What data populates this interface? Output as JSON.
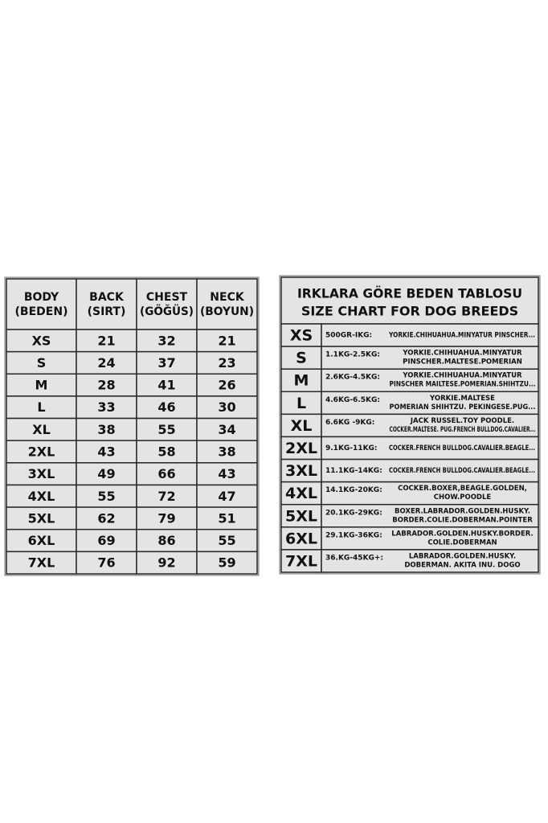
{
  "size_table": {
    "headers": [
      [
        "BODY",
        "(BEDEN)"
      ],
      [
        "BACK",
        "(SIRT)"
      ],
      [
        "CHEST",
        "(GÖĞÜS)"
      ],
      [
        "NECK",
        "(BOYUN)"
      ]
    ],
    "rows": [
      [
        "XS",
        21,
        32,
        21
      ],
      [
        "S",
        24,
        37,
        23
      ],
      [
        "M",
        28,
        41,
        26
      ],
      [
        "L",
        33,
        46,
        30
      ],
      [
        "XL",
        38,
        55,
        34
      ],
      [
        "2XL",
        43,
        58,
        38
      ],
      [
        "3XL",
        49,
        66,
        43
      ],
      [
        "4XL",
        55,
        72,
        47
      ],
      [
        "5XL",
        62,
        79,
        51
      ],
      [
        "6XL",
        69,
        86,
        55
      ],
      [
        "7XL",
        76,
        92,
        59
      ]
    ]
  },
  "breed_table": {
    "title": [
      "IRKLARA GÖRE BEDEN TABLOSU",
      "SIZE CHART FOR DOG BREEDS"
    ],
    "rows": [
      {
        "size": "XS",
        "weight": "500GR-IKG:",
        "breeds": [
          "YORKIE.CHIHUAHUA.MINYATUR PINSCHER..."
        ]
      },
      {
        "size": "S",
        "weight": "1.1KG-2.5KG:",
        "breeds": [
          "YORKIE.CHIHUAHUA.MINYATUR",
          "PINSCHER.MALTESE.POMERIAN"
        ]
      },
      {
        "size": "M",
        "weight": "2.6KG-4.5KG:",
        "breeds": [
          "YORKIE.CHIHUAHUA.MINYATUR",
          "PINSCHER MAILTESE.POMERIAN.SHIHTZU..."
        ]
      },
      {
        "size": "L",
        "weight": "4.6KG-6.5KG:",
        "breeds": [
          "YORKIE.MALTESE",
          "POMERIAN SHIHTZU. PEKINGESE.PUG..."
        ]
      },
      {
        "size": "XL",
        "weight": "6.6KG -9KG:",
        "breeds": [
          "JACK RUSSEL.TOY POODLE.",
          "COCKER.MALTESE. PUG.FRENCH BULLDOG.CAVALIER..."
        ]
      },
      {
        "size": "2XL",
        "weight": "9.1KG-11KG:",
        "breeds": [
          "COCKER.FRENCH BULLDOG.CAVALIER.BEAGLE..."
        ]
      },
      {
        "size": "3XL",
        "weight": "11.1KG-14KG:",
        "breeds": [
          "COCKER.FRENCH BULLDOG.CAVALIER.BEAGLE..."
        ]
      },
      {
        "size": "4XL",
        "weight": "14.1KG-20KG:",
        "breeds": [
          "COCKER.BOXER,BEAGLE.GOLDEN,",
          "CHOW.POODLE"
        ]
      },
      {
        "size": "5XL",
        "weight": "20.1KG-29KG:",
        "breeds": [
          "BOXER.LABRADOR.GOLDEN.HUSKY.",
          "BORDER.COLIE.DOBERMAN.POINTER"
        ]
      },
      {
        "size": "6XL",
        "weight": "29.1KG-36KG:",
        "breeds": [
          "LABRADOR.GOLDEN.HUSKY.BORDER.",
          "COLIE.DOBERMAN"
        ]
      },
      {
        "size": "7XL",
        "weight": "36.KG-45KG+:",
        "breeds": [
          "LABRADOR.GOLDEN.HUSKY.",
          "DOBERMAN. AKITA INU. DOGO"
        ]
      }
    ]
  }
}
